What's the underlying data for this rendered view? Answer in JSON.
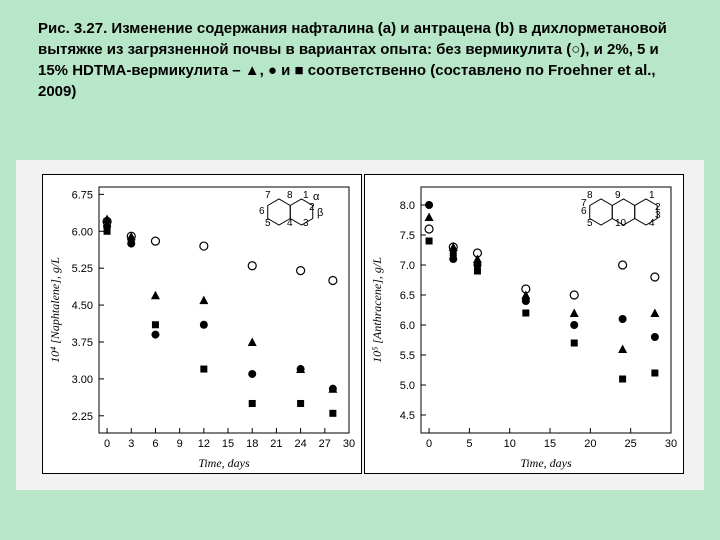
{
  "caption": "Рис. 3.27. Изменение содержания нафталина (a) и антрацена (b) в дихлорметановой вытяжке из загрязненной почвы в вариантах опыта: без вермикулита (○), и 2%, 5 и 15% HDTMA-вермикулита – ▲, ● и ■ соответственно  (составлено по Froehner et al., 2009)",
  "background_color": "#b8e6c8",
  "fig_bg": "#f2f2f2",
  "panel_bg": "#ffffff",
  "axis_color": "#000000",
  "marker_color": "#000000",
  "panelA": {
    "xlabel": "Time, days",
    "ylabel": "10⁴ [Naphtalene], g/L",
    "xlim": [
      -1,
      30
    ],
    "ylim": [
      1.9,
      6.9
    ],
    "xticks": [
      0,
      3,
      6,
      9,
      12,
      15,
      18,
      21,
      24,
      27,
      30
    ],
    "yticks": [
      2.25,
      3.0,
      3.75,
      4.5,
      5.25,
      6.0,
      6.75
    ],
    "xtick_labels": [
      "0",
      "3",
      "6",
      "9",
      "12",
      "15",
      "18",
      "21",
      "24",
      "27",
      "30"
    ],
    "ytick_labels": [
      "2.25",
      "3.00",
      "3.75",
      "4.50",
      "5.25",
      "6.00",
      "6.75"
    ],
    "series": {
      "open_circle": {
        "marker": "open_circle",
        "pts": [
          [
            0,
            6.2
          ],
          [
            3,
            5.9
          ],
          [
            6,
            5.8
          ],
          [
            12,
            5.7
          ],
          [
            18,
            5.3
          ],
          [
            24,
            5.2
          ],
          [
            28,
            5.0
          ]
        ]
      },
      "triangle": {
        "marker": "triangle",
        "pts": [
          [
            0,
            6.25
          ],
          [
            3,
            5.9
          ],
          [
            6,
            4.7
          ],
          [
            12,
            4.6
          ],
          [
            18,
            3.75
          ],
          [
            24,
            3.2
          ],
          [
            28,
            2.8
          ]
        ]
      },
      "filled_circle": {
        "marker": "filled_circle",
        "pts": [
          [
            0,
            6.1
          ],
          [
            3,
            5.75
          ],
          [
            6,
            3.9
          ],
          [
            12,
            4.1
          ],
          [
            18,
            3.1
          ],
          [
            24,
            3.2
          ],
          [
            28,
            2.8
          ]
        ]
      },
      "square": {
        "marker": "square",
        "pts": [
          [
            0,
            6.0
          ],
          [
            3,
            5.8
          ],
          [
            6,
            4.1
          ],
          [
            12,
            3.2
          ],
          [
            18,
            2.5
          ],
          [
            24,
            2.5
          ],
          [
            28,
            2.3
          ]
        ]
      }
    },
    "inset": {
      "type": "naphthalene",
      "labels": [
        "1",
        "2",
        "3",
        "4",
        "5",
        "6",
        "7",
        "8"
      ],
      "greek": [
        "α",
        "β"
      ]
    }
  },
  "panelB": {
    "xlabel": "Time, days",
    "ylabel": "10⁵ [Anthracene], g/L",
    "xlim": [
      -1,
      30
    ],
    "ylim": [
      4.2,
      8.3
    ],
    "xticks": [
      0,
      5,
      10,
      15,
      20,
      25,
      30
    ],
    "yticks": [
      4.5,
      5.0,
      5.5,
      6.0,
      6.5,
      7.0,
      7.5,
      8.0
    ],
    "xtick_labels": [
      "0",
      "5",
      "10",
      "15",
      "20",
      "25",
      "30"
    ],
    "ytick_labels": [
      "4.5",
      "5.0",
      "5.5",
      "6.0",
      "6.5",
      "7.0",
      "7.5",
      "8.0"
    ],
    "series": {
      "open_circle": {
        "marker": "open_circle",
        "pts": [
          [
            0,
            7.6
          ],
          [
            3,
            7.3
          ],
          [
            6,
            7.2
          ],
          [
            12,
            6.6
          ],
          [
            18,
            6.5
          ],
          [
            24,
            7.0
          ],
          [
            28,
            6.8
          ]
        ]
      },
      "triangle": {
        "marker": "triangle",
        "pts": [
          [
            0,
            7.8
          ],
          [
            3,
            7.3
          ],
          [
            6,
            7.1
          ],
          [
            12,
            6.5
          ],
          [
            18,
            6.2
          ],
          [
            24,
            5.6
          ],
          [
            28,
            6.2
          ]
        ]
      },
      "filled_circle": {
        "marker": "filled_circle",
        "pts": [
          [
            0,
            8.0
          ],
          [
            3,
            7.1
          ],
          [
            6,
            7.0
          ],
          [
            12,
            6.4
          ],
          [
            18,
            6.0
          ],
          [
            24,
            6.1
          ],
          [
            28,
            5.8
          ]
        ]
      },
      "square": {
        "marker": "square",
        "pts": [
          [
            0,
            7.4
          ],
          [
            3,
            7.2
          ],
          [
            6,
            6.9
          ],
          [
            12,
            6.2
          ],
          [
            18,
            5.7
          ],
          [
            24,
            5.1
          ],
          [
            28,
            5.2
          ]
        ]
      }
    },
    "inset": {
      "type": "anthracene",
      "labels": [
        "1",
        "2",
        "3",
        "4",
        "5",
        "6",
        "7",
        "8",
        "9",
        "10"
      ]
    }
  }
}
